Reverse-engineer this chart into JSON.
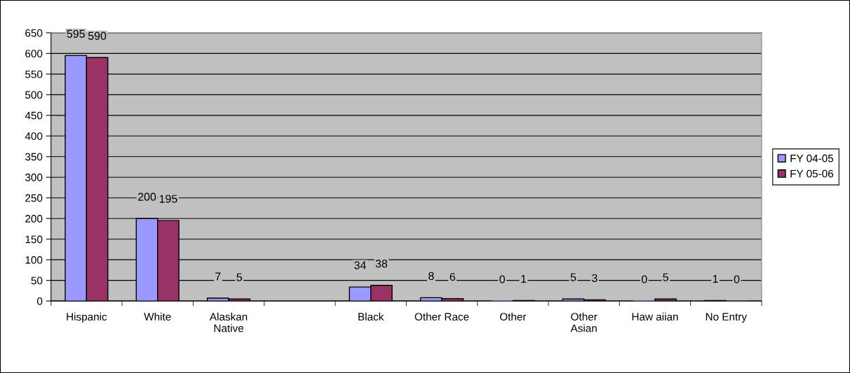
{
  "chart_data": {
    "type": "bar",
    "categories": [
      "Hispanic",
      "White",
      "Alaskan\nNative",
      null,
      "Black",
      "Other Race",
      "Other",
      "Other\nAsian",
      "Haw aiian",
      "No Entry"
    ],
    "series": [
      {
        "name": "FY 04-05",
        "color": "#9999ff",
        "values": [
          595,
          200,
          7,
          null,
          34,
          8,
          0,
          5,
          0,
          1
        ]
      },
      {
        "name": "FY 05-06",
        "color": "#993366",
        "values": [
          590,
          195,
          5,
          null,
          38,
          6,
          1,
          3,
          5,
          0
        ]
      }
    ],
    "ylim": [
      0,
      650
    ],
    "yticks": [
      0,
      50,
      100,
      150,
      200,
      250,
      300,
      350,
      400,
      450,
      500,
      550,
      600,
      650
    ],
    "grid": "y",
    "legend": "right",
    "data_labels": true
  }
}
